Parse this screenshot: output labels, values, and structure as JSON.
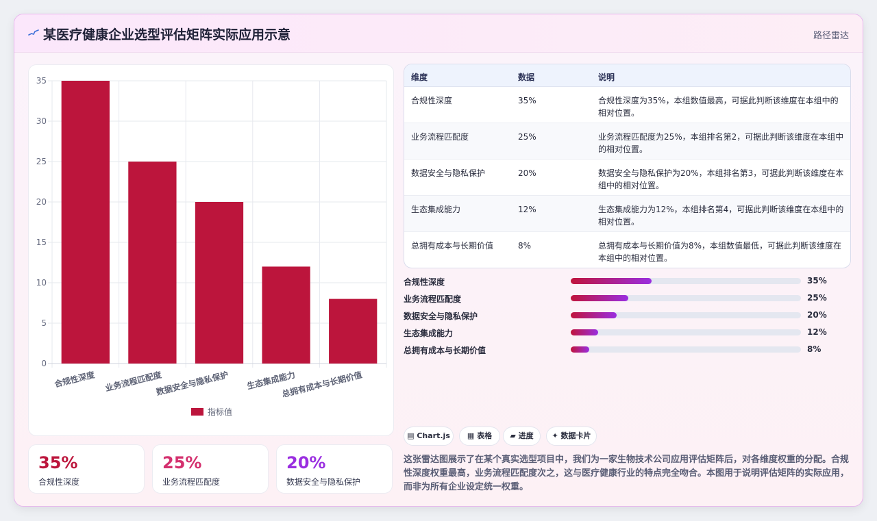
{
  "header": {
    "title": "某医疗健康企业选型评估矩阵实际应用示意",
    "right_label": "路径雷达"
  },
  "chart_data": {
    "type": "bar",
    "categories": [
      "合规性深度",
      "业务流程匹配度",
      "数据安全与隐私保护",
      "生态集成能力",
      "总拥有成本与长期价值"
    ],
    "series": [
      {
        "name": "指标值",
        "values": [
          35,
          25,
          20,
          12,
          8
        ],
        "color": "#bc153c"
      }
    ],
    "ylim": [
      0,
      35
    ],
    "yticks": [
      0,
      5,
      10,
      15,
      20,
      25,
      30,
      35
    ],
    "grid": true,
    "legend": "bottom"
  },
  "kpis": [
    {
      "value": "35%",
      "label": "合规性深度",
      "color": "#bc153c"
    },
    {
      "value": "25%",
      "label": "业务流程匹配度",
      "color": "#d4306e"
    },
    {
      "value": "20%",
      "label": "数据安全与隐私保护",
      "color": "#9a2ee0"
    }
  ],
  "table": {
    "headers": [
      "维度",
      "数据",
      "说明"
    ],
    "rows": [
      {
        "dim": "合规性深度",
        "value": "35%",
        "desc": "合规性深度为35%，本组数值最高，可据此判断该维度在本组中的相对位置。"
      },
      {
        "dim": "业务流程匹配度",
        "value": "25%",
        "desc": "业务流程匹配度为25%，本组排名第2，可据此判断该维度在本组中的相对位置。"
      },
      {
        "dim": "数据安全与隐私保护",
        "value": "20%",
        "desc": "数据安全与隐私保护为20%，本组排名第3，可据此判断该维度在本组中的相对位置。"
      },
      {
        "dim": "生态集成能力",
        "value": "12%",
        "desc": "生态集成能力为12%，本组排名第4，可据此判断该维度在本组中的相对位置。"
      },
      {
        "dim": "总拥有成本与长期价值",
        "value": "8%",
        "desc": "总拥有成本与长期价值为8%，本组数值最低，可据此判断该维度在本组中的相对位置。"
      }
    ]
  },
  "progress": [
    {
      "label": "合规性深度",
      "value": "35%",
      "fraction": 0.35
    },
    {
      "label": "业务流程匹配度",
      "value": "25%",
      "fraction": 0.25
    },
    {
      "label": "数据安全与隐私保护",
      "value": "20%",
      "fraction": 0.2
    },
    {
      "label": "生态集成能力",
      "value": "12%",
      "fraction": 0.12
    },
    {
      "label": "总拥有成本与长期价值",
      "value": "8%",
      "fraction": 0.08
    }
  ],
  "chips": [
    {
      "icon": "▤",
      "label": "Chart.js"
    },
    {
      "icon": "▦",
      "label": "表格"
    },
    {
      "icon": "▰",
      "label": "进度"
    },
    {
      "icon": "✦",
      "label": "数据卡片"
    }
  ],
  "description": "这张雷达图展示了在某个真实选型项目中，我们为一家生物技术公司应用评估矩阵后，对各维度权重的分配。合规性深度权重最高，业务流程匹配度次之，这与医疗健康行业的特点完全吻合。本图用于说明评估矩阵的实际应用，而非为所有企业设定统一权重。"
}
